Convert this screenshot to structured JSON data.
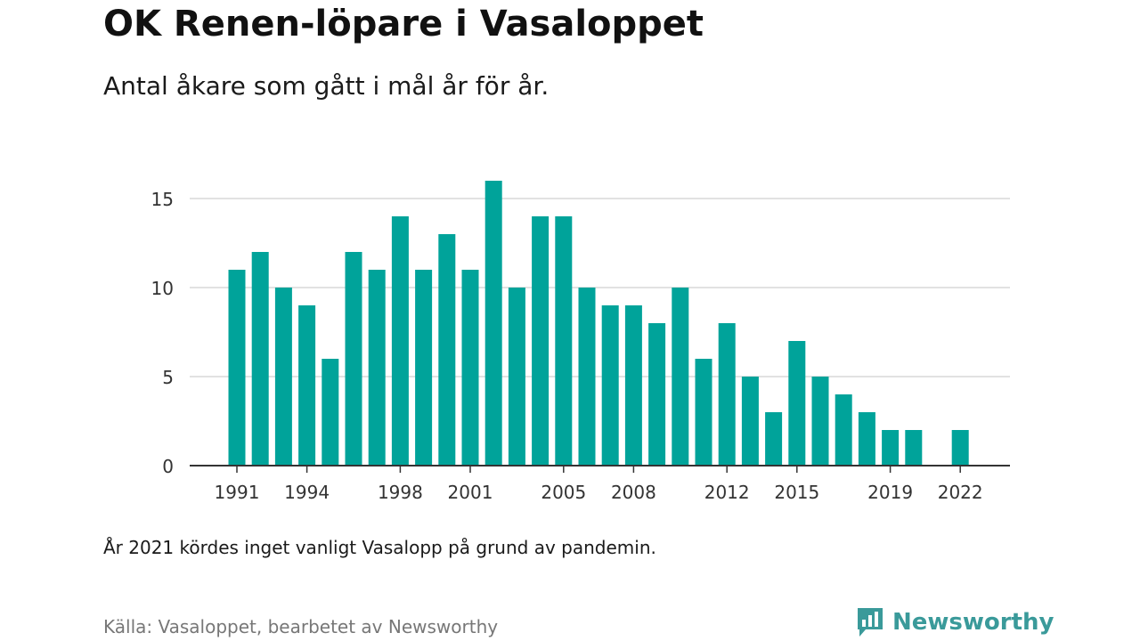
{
  "title": "OK Renen-löpare i Vasaloppet",
  "subtitle": "Antal åkare som gått i mål år för år.",
  "note": "År 2021 kördes inget vanligt Vasalopp på grund av pandemin.",
  "source": "Källa: Vasaloppet, bearbetet av Newsworthy",
  "brand": {
    "name": "Newsworthy",
    "icon": "newsworthy-logo-icon",
    "color": "#3a9a9a"
  },
  "chart_data": {
    "type": "bar",
    "color": "#00a39a",
    "x": [
      1991,
      1992,
      1993,
      1994,
      1995,
      1996,
      1997,
      1998,
      1999,
      2000,
      2001,
      2002,
      2003,
      2004,
      2005,
      2006,
      2007,
      2008,
      2009,
      2010,
      2011,
      2012,
      2013,
      2014,
      2015,
      2016,
      2017,
      2018,
      2019,
      2020,
      2021,
      2022
    ],
    "values": [
      11,
      12,
      10,
      9,
      6,
      12,
      11,
      14,
      11,
      13,
      11,
      16,
      10,
      14,
      14,
      10,
      9,
      9,
      8,
      10,
      6,
      8,
      5,
      3,
      7,
      5,
      4,
      3,
      2,
      2,
      null,
      2
    ],
    "x_ticks": [
      "1991",
      "1994",
      "1998",
      "2001",
      "2005",
      "2008",
      "2012",
      "2015",
      "2019",
      "2022"
    ],
    "y_ticks": [
      "0",
      "5",
      "10",
      "15"
    ],
    "ylim": [
      0,
      16
    ],
    "grid": true,
    "xlabel": "",
    "ylabel": ""
  }
}
